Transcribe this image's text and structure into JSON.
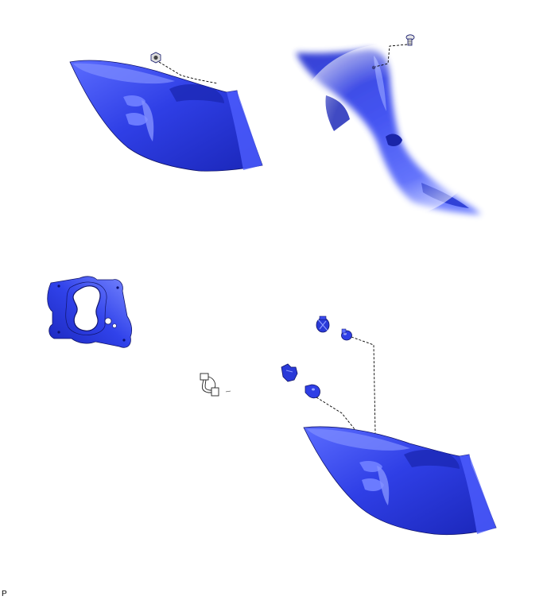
{
  "corner_label": "P",
  "colors": {
    "part_blue": "#2f3fe6",
    "part_dark": "#1a26b8",
    "part_light": "#6f80ff",
    "outline": "#10146a",
    "background": "#ffffff"
  },
  "icons": [
    "tail-light-assembly",
    "hex-nut",
    "clip-screw",
    "gasket",
    "wire-harness",
    "bulb-socket",
    "bulb"
  ]
}
